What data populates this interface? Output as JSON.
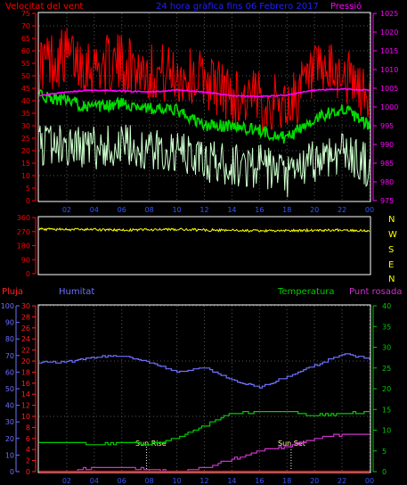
{
  "header": {
    "title": "24 hora gràfica fins 06 Febrero 2017",
    "left_label": "Velocitat del vent",
    "right_label": "Pressió"
  },
  "colors": {
    "wind_gust": "#ff0000",
    "wind_avg": "#00dd00",
    "wind_min": "#ccffcc",
    "pressure": "#ff00ff",
    "direction": "#ffff00",
    "rain": "#ff2020",
    "humidity": "#6f6fff",
    "temperature": "#00cc00",
    "dewpoint": "#cc33cc",
    "axis": "#3355ff",
    "grid": "#ffffff",
    "title": "#2020ff"
  },
  "x_ticks": [
    "02",
    "04",
    "06",
    "08",
    "10",
    "12",
    "14",
    "16",
    "18",
    "20",
    "22",
    "00"
  ],
  "chart_data": [
    {
      "type": "line",
      "id": "wind",
      "title": "24 hora gràfica fins 06 Febrero 2017",
      "left_axis": {
        "label": "Velocitat del vent",
        "ticks": [
          0,
          5,
          10,
          15,
          20,
          25,
          30,
          35,
          40,
          45,
          50,
          55,
          60,
          65,
          70,
          75
        ],
        "ylim": [
          0,
          75
        ]
      },
      "right_axis": {
        "label": "Pressió",
        "ticks": [
          975,
          980,
          985,
          990,
          995,
          1000,
          1005,
          1010,
          1015,
          1020,
          1025
        ],
        "ylim": [
          975,
          1025
        ]
      },
      "x_hours": [
        0,
        2,
        4,
        6,
        8,
        10,
        12,
        14,
        16,
        18,
        20,
        22,
        24
      ],
      "series": [
        {
          "name": "wind_gust",
          "axis": "left",
          "values": [
            55,
            58,
            54,
            55,
            52,
            50,
            49,
            42,
            40,
            38,
            50,
            51,
            40
          ]
        },
        {
          "name": "wind_avg",
          "axis": "left",
          "values": [
            42,
            40,
            37,
            39,
            37,
            36,
            30,
            30,
            28,
            25,
            33,
            37,
            30
          ]
        },
        {
          "name": "wind_min",
          "axis": "left",
          "values": [
            23,
            22,
            21,
            22,
            20,
            19,
            16,
            14,
            14,
            9,
            16,
            20,
            14
          ]
        },
        {
          "name": "pressure",
          "axis": "right",
          "values": [
            1003,
            1004,
            1004.5,
            1004.3,
            1004,
            1004.5,
            1004,
            1003,
            1002.8,
            1003.2,
            1004.5,
            1004.8,
            1004.5
          ]
        }
      ]
    },
    {
      "type": "line",
      "id": "direction",
      "left_axis": {
        "ticks": [
          0,
          90,
          180,
          270,
          360
        ],
        "ylim": [
          0,
          360
        ]
      },
      "compass_labels": [
        "N",
        "W",
        "S",
        "E",
        "N"
      ],
      "series": [
        {
          "name": "direction",
          "values": [
            285,
            284,
            282,
            280,
            282,
            283,
            280,
            278,
            274,
            275,
            279,
            280,
            276
          ]
        }
      ]
    },
    {
      "type": "line",
      "id": "atmosphere",
      "legend": [
        "Pluja",
        "Humitat",
        "Temperatura",
        "Punt rosada"
      ],
      "left_axis_rain": {
        "label": "Pluja",
        "ticks": [
          0,
          2,
          4,
          6,
          8,
          10,
          12,
          14,
          16,
          18,
          20,
          22,
          24,
          26,
          28,
          30
        ],
        "ylim": [
          0,
          30
        ]
      },
      "left_axis_humidity": {
        "label": "Humitat",
        "ticks": [
          0,
          10,
          20,
          30,
          40,
          50,
          60,
          70,
          80,
          90,
          100
        ],
        "ylim": [
          0,
          100
        ]
      },
      "right_axis": {
        "ticks": [
          0,
          5,
          10,
          15,
          20,
          25,
          30,
          35,
          40
        ],
        "ylim": [
          0,
          40
        ]
      },
      "annotations": [
        {
          "text": "Sun Rise",
          "x_hour": 7.8
        },
        {
          "text": "Sun Set",
          "x_hour": 18.3
        }
      ],
      "series": [
        {
          "name": "Humitat",
          "axis": "humidity",
          "values": [
            66,
            66,
            69,
            70,
            66,
            60,
            63,
            55,
            51,
            57,
            64,
            71,
            68
          ]
        },
        {
          "name": "Temperatura",
          "axis": "right",
          "values": [
            7,
            7,
            6.5,
            7,
            6.5,
            8,
            11,
            14,
            14.5,
            14.5,
            13.5,
            14,
            14.5
          ]
        },
        {
          "name": "Punt rosada",
          "axis": "right",
          "values": [
            0,
            0,
            1,
            1,
            0.5,
            0,
            1,
            3,
            5,
            6,
            8,
            9,
            9
          ]
        },
        {
          "name": "Pluja",
          "axis": "rain",
          "values": [
            0,
            0,
            0,
            0,
            0,
            0,
            0,
            0,
            0,
            0,
            0,
            0,
            0
          ]
        }
      ]
    }
  ]
}
